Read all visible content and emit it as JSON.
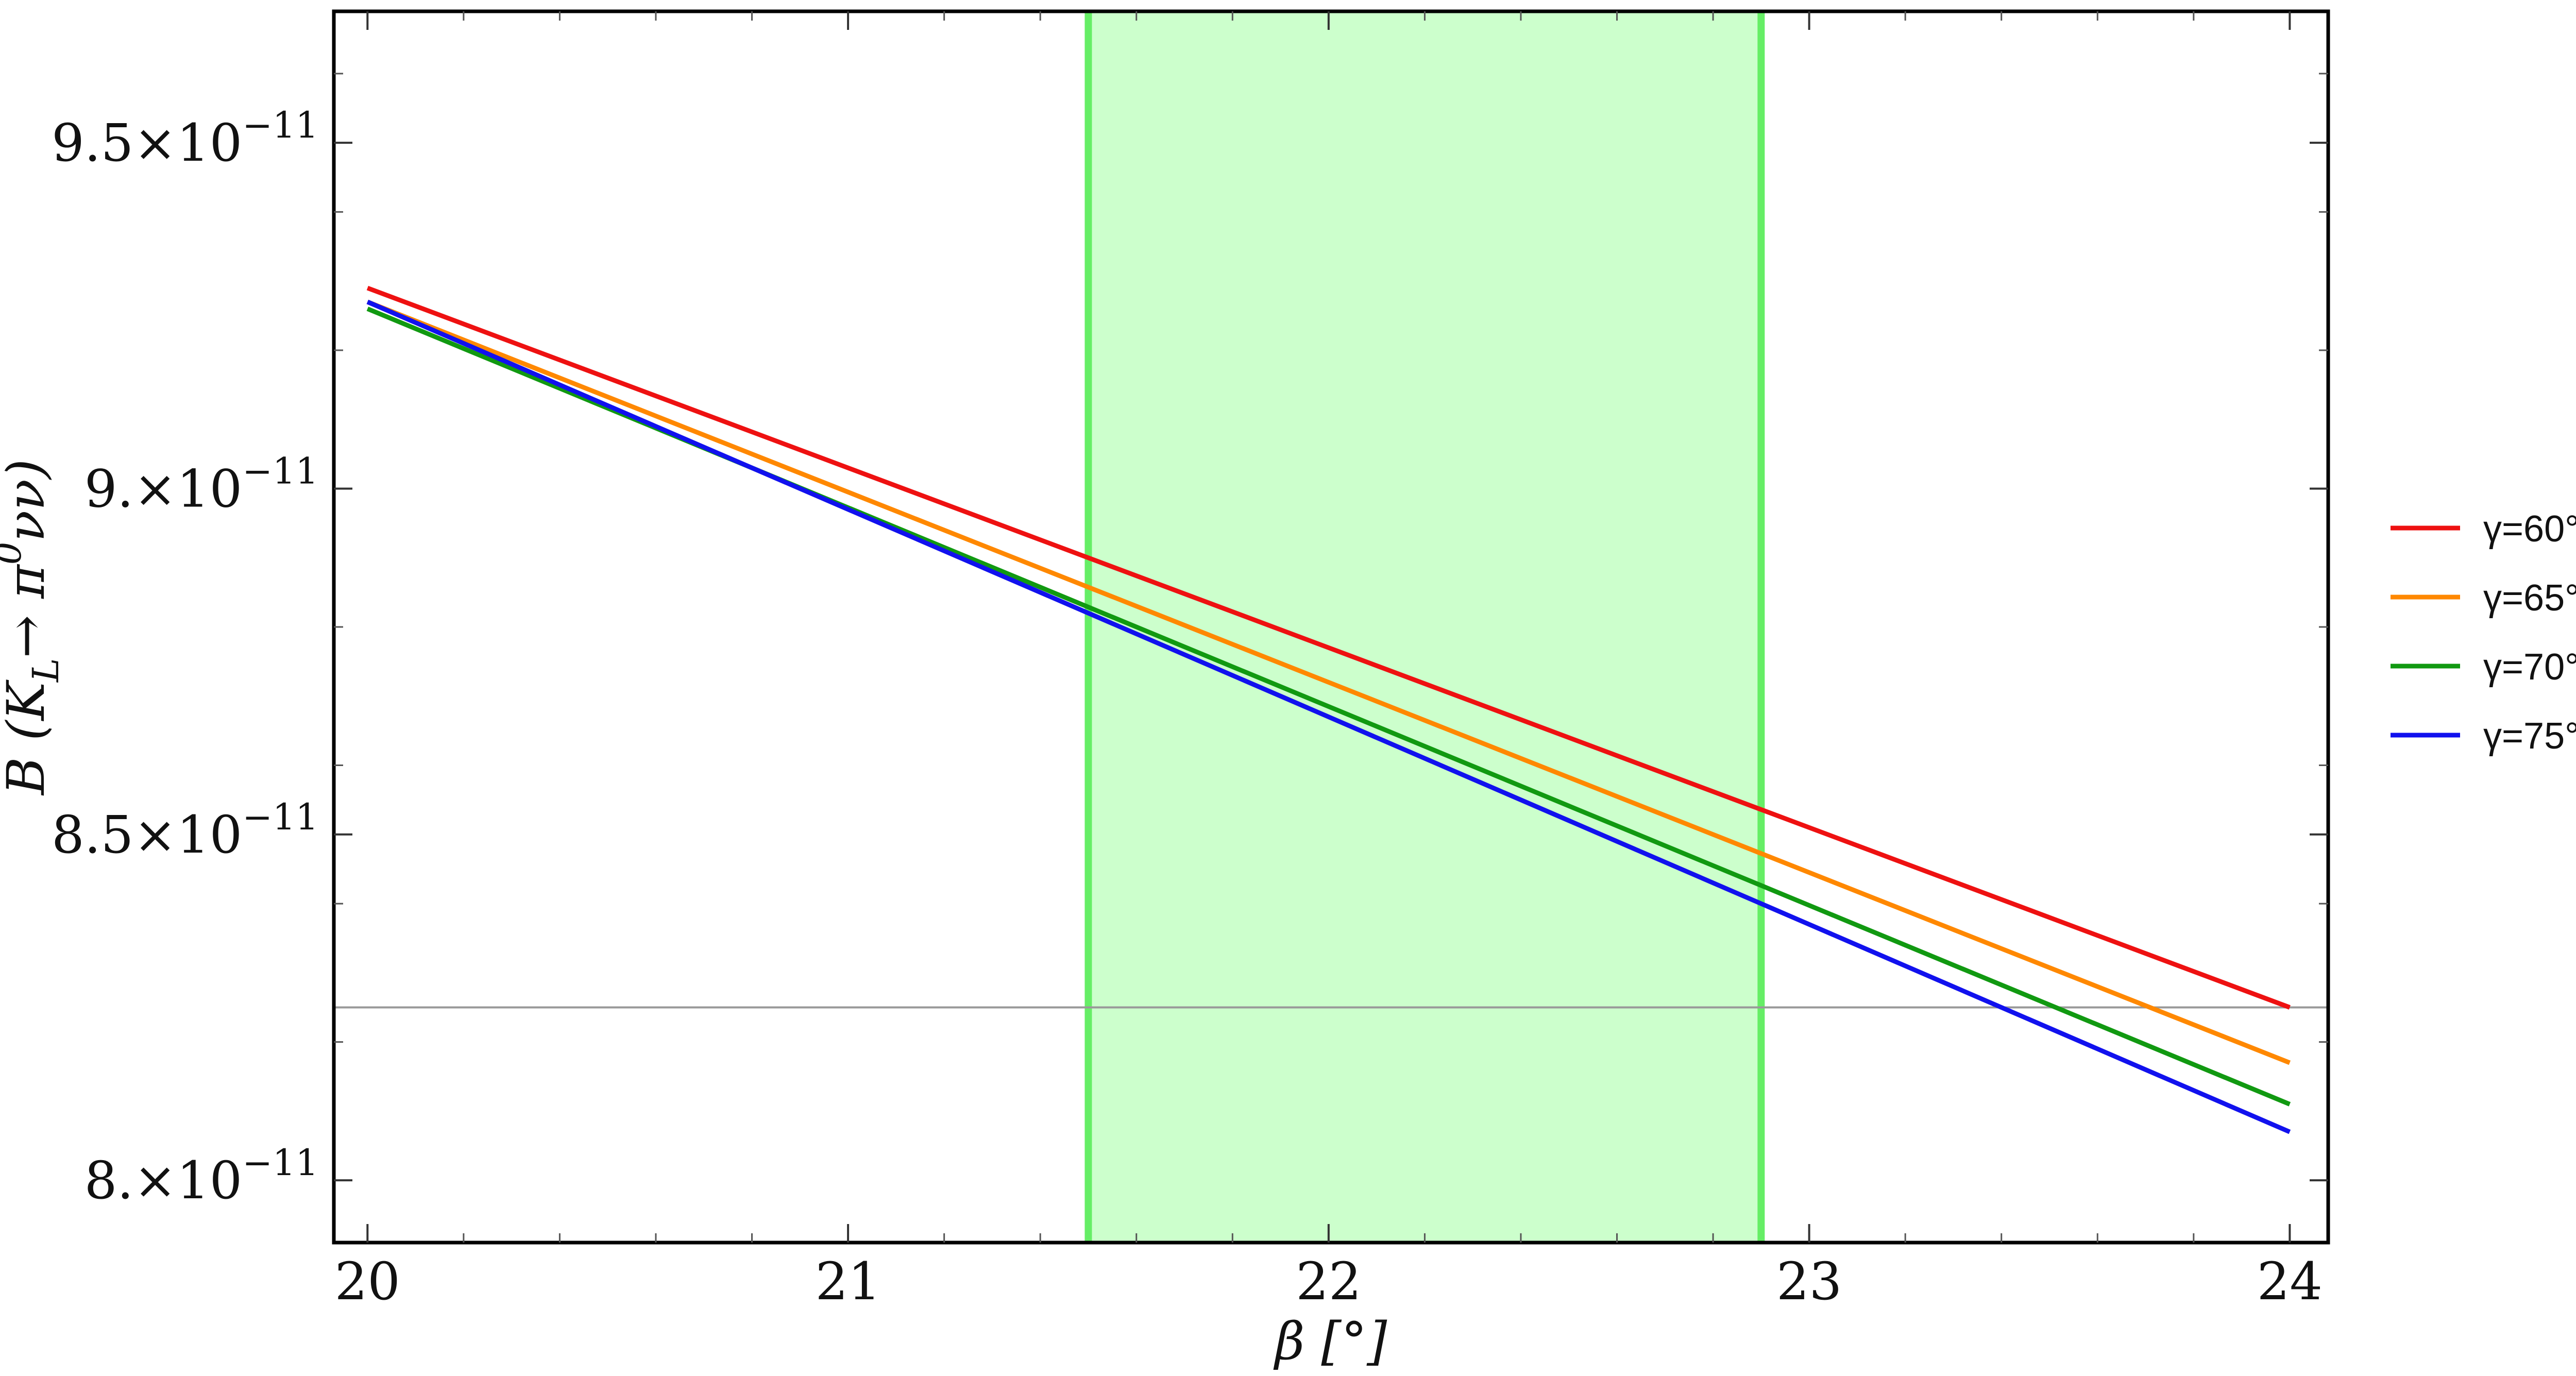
{
  "chart_data": {
    "type": "line",
    "title": "",
    "xlabel": "β [°]",
    "ylabel": "B (K_L→ π^0 νν)",
    "xlim": [
      19.93,
      24.08
    ],
    "ylim": [
      7.91e-11,
      9.69e-11
    ],
    "x_ticks": [
      20,
      21,
      22,
      23,
      24
    ],
    "x_tick_labels": [
      "20",
      "21",
      "22",
      "23",
      "24"
    ],
    "y_ticks": [
      8e-11,
      8.5e-11,
      9e-11,
      9.5e-11
    ],
    "y_tick_labels": [
      {
        "mantissa": "8.",
        "times": "×10",
        "exp": "−11"
      },
      {
        "mantissa": "8.5",
        "times": "×10",
        "exp": "−11"
      },
      {
        "mantissa": "9.",
        "times": "×10",
        "exp": "−11"
      },
      {
        "mantissa": "9.5",
        "times": "×10",
        "exp": "−11"
      }
    ],
    "y_minor_step": 2e-12,
    "x_minor_step": 0.2,
    "band": {
      "x_min": 21.5,
      "x_max": 22.9,
      "color": "#ccffcc",
      "edge_color": "#66ee66"
    },
    "hline": {
      "y": 8.25e-11,
      "color": "#999999"
    },
    "x": [
      20,
      24
    ],
    "series": [
      {
        "name": "γ=60°",
        "color": "#ee1111",
        "values": [
          9.29e-11,
          8.25e-11
        ]
      },
      {
        "name": "γ=65°",
        "color": "#ff8800",
        "values": [
          9.27e-11,
          8.17e-11
        ]
      },
      {
        "name": "γ=70°",
        "color": "#119911",
        "values": [
          9.26e-11,
          8.11e-11
        ]
      },
      {
        "name": "γ=75°",
        "color": "#1111ee",
        "values": [
          9.27e-11,
          8.07e-11
        ]
      }
    ],
    "grid": false,
    "legend_position": "right"
  }
}
